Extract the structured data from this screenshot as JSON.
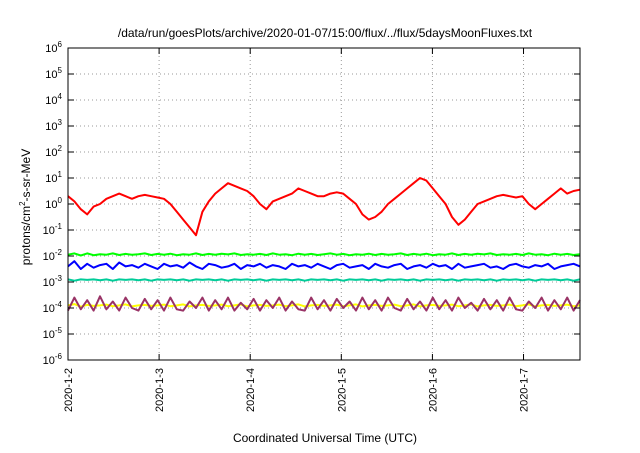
{
  "chart_data": {
    "type": "line",
    "title": "/data/run/goesPlots/archive/2020-01-07/15:00/flux/../flux/5daysMoonFluxes.txt",
    "xlabel": "Coordinated Universal Time (UTC)",
    "ylabel_parts": {
      "base": "protons/cm",
      "sup": "2",
      "rest": "-s-sr-MeV"
    },
    "y_scale": "log",
    "ylim_exponents": [
      -6,
      6
    ],
    "y_ticks": [
      {
        "base": "10",
        "exp": "-6"
      },
      {
        "base": "10",
        "exp": "-5"
      },
      {
        "base": "10",
        "exp": "-4"
      },
      {
        "base": "10",
        "exp": "-3"
      },
      {
        "base": "10",
        "exp": "-2"
      },
      {
        "base": "10",
        "exp": "-1"
      },
      {
        "base": "10",
        "exp": "0"
      },
      {
        "base": "10",
        "exp": "1"
      },
      {
        "base": "10",
        "exp": "2"
      },
      {
        "base": "10",
        "exp": "3"
      },
      {
        "base": "10",
        "exp": "4"
      },
      {
        "base": "10",
        "exp": "5"
      },
      {
        "base": "10",
        "exp": "6"
      }
    ],
    "x_range_days": [
      "2020-01-02",
      "2020-01-07 15:00"
    ],
    "x_ticks": [
      "2020-1-2",
      "2020-1-3",
      "2020-1-4",
      "2020-1-5",
      "2020-1-6",
      "2020-1-7"
    ],
    "grid": true,
    "series_colors": [
      "#ff0000",
      "#00ff00",
      "#0000ff",
      "#00cc99",
      "#ffff00",
      "#993366"
    ],
    "series": [
      {
        "color": "#ff0000",
        "log10_values": [
          0.3,
          0.1,
          -0.2,
          -0.4,
          -0.1,
          0.0,
          0.2,
          0.3,
          0.4,
          0.3,
          0.2,
          0.3,
          0.35,
          0.3,
          0.25,
          0.2,
          0.0,
          -0.3,
          -0.6,
          -0.9,
          -1.2,
          -0.3,
          0.1,
          0.4,
          0.6,
          0.8,
          0.7,
          0.6,
          0.5,
          0.3,
          0.0,
          -0.2,
          0.1,
          0.2,
          0.3,
          0.4,
          0.6,
          0.5,
          0.4,
          0.3,
          0.3,
          0.4,
          0.45,
          0.4,
          0.2,
          0.0,
          -0.4,
          -0.6,
          -0.5,
          -0.3,
          0.0,
          0.2,
          0.4,
          0.6,
          0.8,
          1.0,
          0.9,
          0.6,
          0.3,
          0.0,
          -0.5,
          -0.8,
          -0.6,
          -0.3,
          0.0,
          0.1,
          0.2,
          0.3,
          0.35,
          0.3,
          0.25,
          0.3,
          0.0,
          -0.2,
          0.0,
          0.2,
          0.4,
          0.6,
          0.4,
          0.5,
          0.55
        ]
      },
      {
        "color": "#00ff00",
        "log10_values": [
          -1.95,
          -1.9,
          -1.98,
          -1.9,
          -1.97,
          -1.93,
          -1.95,
          -1.9,
          -1.96,
          -1.92,
          -1.95,
          -1.93,
          -1.9,
          -1.96,
          -1.92,
          -1.95,
          -1.91,
          -1.97,
          -1.93,
          -1.95,
          -1.9,
          -1.96,
          -1.92,
          -1.95,
          -1.91,
          -1.94,
          -1.9,
          -1.96,
          -1.93,
          -1.95,
          -1.92,
          -1.96,
          -1.9,
          -1.95,
          -1.93,
          -1.97,
          -1.91,
          -1.95,
          -1.92,
          -1.96,
          -1.93,
          -1.9,
          -1.95,
          -1.92,
          -1.97,
          -1.93,
          -1.95,
          -1.91,
          -1.96,
          -1.92,
          -1.95,
          -1.93,
          -1.9,
          -1.96,
          -1.92,
          -1.95,
          -1.91,
          -1.97,
          -1.93,
          -1.95,
          -1.9,
          -1.96,
          -1.92,
          -1.95,
          -1.91,
          -1.94,
          -1.9,
          -1.96,
          -1.93,
          -1.95,
          -1.92,
          -1.96,
          -1.9,
          -1.95,
          -1.93,
          -1.97,
          -1.91,
          -1.95,
          -1.92,
          -1.96,
          -1.93
        ]
      },
      {
        "color": "#0000ff",
        "log10_values": [
          -2.4,
          -2.2,
          -2.5,
          -2.3,
          -2.45,
          -2.35,
          -2.3,
          -2.5,
          -2.25,
          -2.4,
          -2.35,
          -2.45,
          -2.3,
          -2.4,
          -2.5,
          -2.3,
          -2.4,
          -2.35,
          -2.45,
          -2.25,
          -2.4,
          -2.5,
          -2.3,
          -2.35,
          -2.45,
          -2.4,
          -2.3,
          -2.5,
          -2.35,
          -2.4,
          -2.3,
          -2.45,
          -2.35,
          -2.4,
          -2.5,
          -2.3,
          -2.4,
          -2.35,
          -2.45,
          -2.3,
          -2.4,
          -2.5,
          -2.35,
          -2.3,
          -2.45,
          -2.4,
          -2.35,
          -2.5,
          -2.3,
          -2.4,
          -2.45,
          -2.35,
          -2.3,
          -2.5,
          -2.4,
          -2.35,
          -2.45,
          -2.3,
          -2.4,
          -2.35,
          -2.5,
          -2.3,
          -2.45,
          -2.4,
          -2.35,
          -2.3,
          -2.45,
          -2.4,
          -2.5,
          -2.35,
          -2.3,
          -2.4,
          -2.45,
          -2.35,
          -2.4,
          -2.3,
          -2.5,
          -2.4,
          -2.35,
          -2.3,
          -2.4
        ]
      },
      {
        "color": "#00cc99",
        "log10_values": [
          -2.9,
          -2.95,
          -2.9,
          -2.92,
          -2.9,
          -2.93,
          -2.9,
          -2.95,
          -2.9,
          -2.92,
          -2.9,
          -2.93,
          -2.9,
          -2.95,
          -2.9,
          -2.92,
          -2.9,
          -2.93,
          -2.9,
          -2.95,
          -2.9,
          -2.92,
          -2.9,
          -2.93,
          -2.9,
          -2.95,
          -2.9,
          -2.92,
          -2.9,
          -2.93,
          -2.9,
          -2.95,
          -2.9,
          -2.92,
          -2.9,
          -2.93,
          -2.9,
          -2.95,
          -2.9,
          -2.92,
          -2.9,
          -2.93,
          -2.9,
          -2.95,
          -2.9,
          -2.92,
          -2.9,
          -2.93,
          -2.9,
          -2.95,
          -2.9,
          -2.92,
          -2.9,
          -2.93,
          -2.9,
          -2.95,
          -2.9,
          -2.92,
          -2.9,
          -2.93,
          -2.9,
          -2.95,
          -2.9,
          -2.92,
          -2.9,
          -2.93,
          -2.9,
          -2.95,
          -2.9,
          -2.92,
          -2.9,
          -2.93,
          -2.9,
          -2.95,
          -2.9,
          -2.92,
          -2.9,
          -2.93,
          -2.9,
          -2.95,
          -2.9
        ]
      },
      {
        "color": "#ffff00",
        "log10_values": [
          -3.9,
          -3.85,
          -3.95,
          -3.88,
          -3.92,
          -3.9,
          -3.87,
          -3.93,
          -3.9,
          -3.86,
          -3.94,
          -3.9,
          -3.88,
          -3.92,
          -3.9,
          -3.87,
          -3.93,
          -3.9,
          -3.86,
          -3.94,
          -3.9,
          -3.88,
          -3.92,
          -3.9,
          -3.87,
          -3.93,
          -3.9,
          -3.86,
          -3.94,
          -3.9,
          -3.88,
          -3.92,
          -3.9,
          -3.87,
          -3.93,
          -3.9,
          -3.86,
          -3.94,
          -3.9,
          -3.88,
          -3.92,
          -3.9,
          -3.87,
          -3.93,
          -3.9,
          -3.86,
          -3.94,
          -3.9,
          -3.88,
          -3.92,
          -3.9,
          -3.87,
          -3.93,
          -3.9,
          -3.86,
          -3.94,
          -3.9,
          -3.88,
          -3.92,
          -3.9,
          -3.87,
          -3.93,
          -3.9,
          -3.86,
          -3.94,
          -3.9,
          -3.88,
          -3.92,
          -3.9,
          -3.87,
          -3.93,
          -3.9,
          -3.86,
          -3.94,
          -3.9,
          -3.88,
          -3.92,
          -3.9,
          -3.87,
          -3.93,
          -3.9
        ]
      },
      {
        "color": "#993366",
        "log10_values": [
          -4.1,
          -3.6,
          -4.05,
          -3.7,
          -4.1,
          -3.55,
          -4.05,
          -3.75,
          -4.1,
          -3.6,
          -4.0,
          -4.1,
          -3.65,
          -4.05,
          -3.7,
          -4.1,
          -3.6,
          -4.05,
          -4.1,
          -3.75,
          -4.0,
          -3.6,
          -4.1,
          -3.7,
          -4.05,
          -3.6,
          -4.1,
          -3.8,
          -4.05,
          -3.65,
          -4.1,
          -3.7,
          -4.0,
          -3.6,
          -4.1,
          -3.75,
          -4.05,
          -4.1,
          -3.6,
          -4.05,
          -3.7,
          -4.1,
          -3.65,
          -4.0,
          -3.75,
          -4.1,
          -3.6,
          -4.05,
          -3.7,
          -4.1,
          -3.6,
          -4.0,
          -4.1,
          -3.65,
          -4.05,
          -3.75,
          -4.1,
          -3.6,
          -4.05,
          -3.7,
          -4.1,
          -3.6,
          -4.0,
          -3.8,
          -4.1,
          -3.65,
          -4.05,
          -3.7,
          -4.1,
          -3.6,
          -4.05,
          -4.1,
          -3.75,
          -4.0,
          -3.6,
          -4.1,
          -3.7,
          -4.05,
          -3.6,
          -4.1,
          -3.7
        ]
      }
    ]
  }
}
